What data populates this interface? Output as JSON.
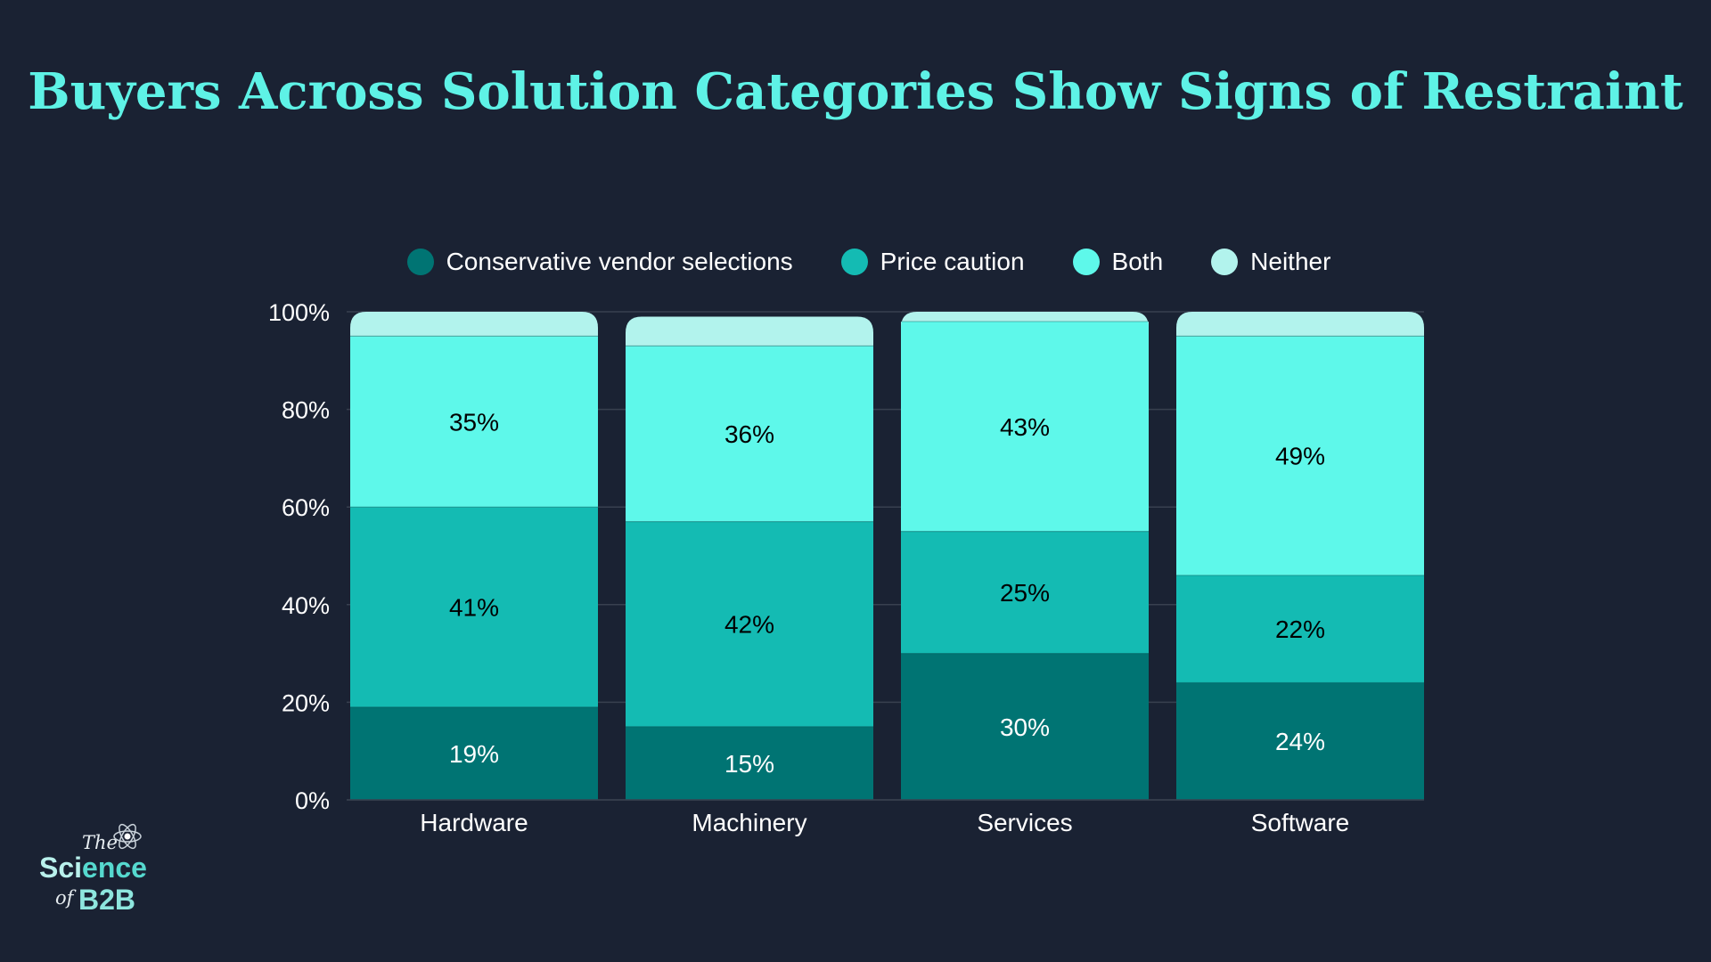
{
  "title": "Buyers Across Solution Categories Show Signs of Restraint",
  "logo": {
    "line1": "The",
    "line2a": "Sci",
    "line2b": "ence",
    "line3a": "of",
    "line3b": "B2B",
    "icon": "atom-icon"
  },
  "chart_data": {
    "type": "bar",
    "stacked": true,
    "title": "Buyers Across Solution Categories Show Signs of Restraint",
    "xlabel": "",
    "ylabel": "",
    "ylim": [
      0,
      100
    ],
    "y_ticks": [
      "0%",
      "20%",
      "40%",
      "60%",
      "80%",
      "100%"
    ],
    "y_tick_values": [
      0,
      20,
      40,
      60,
      80,
      100
    ],
    "grid": true,
    "legend_position": "top",
    "categories": [
      "Hardware",
      "Machinery",
      "Services",
      "Software"
    ],
    "series": [
      {
        "name": "Conservative vendor selections",
        "color": "#007473",
        "label_color": "#ffffff",
        "values": [
          19,
          15,
          30,
          24
        ],
        "labels": [
          "19%",
          "15%",
          "30%",
          "24%"
        ]
      },
      {
        "name": "Price caution",
        "color": "#14bbb3",
        "label_color": "#000000",
        "values": [
          41,
          42,
          25,
          22
        ],
        "labels": [
          "41%",
          "42%",
          "25%",
          "22%"
        ]
      },
      {
        "name": "Both",
        "color": "#5ef8ea",
        "label_color": "#000000",
        "values": [
          35,
          36,
          43,
          49
        ],
        "labels": [
          "35%",
          "36%",
          "43%",
          "49%"
        ]
      },
      {
        "name": "Neither",
        "color": "#b2f3ed",
        "label_color": "#000000",
        "values": [
          5,
          6,
          2,
          5
        ],
        "labels": [
          "",
          "",
          "",
          ""
        ]
      }
    ]
  }
}
